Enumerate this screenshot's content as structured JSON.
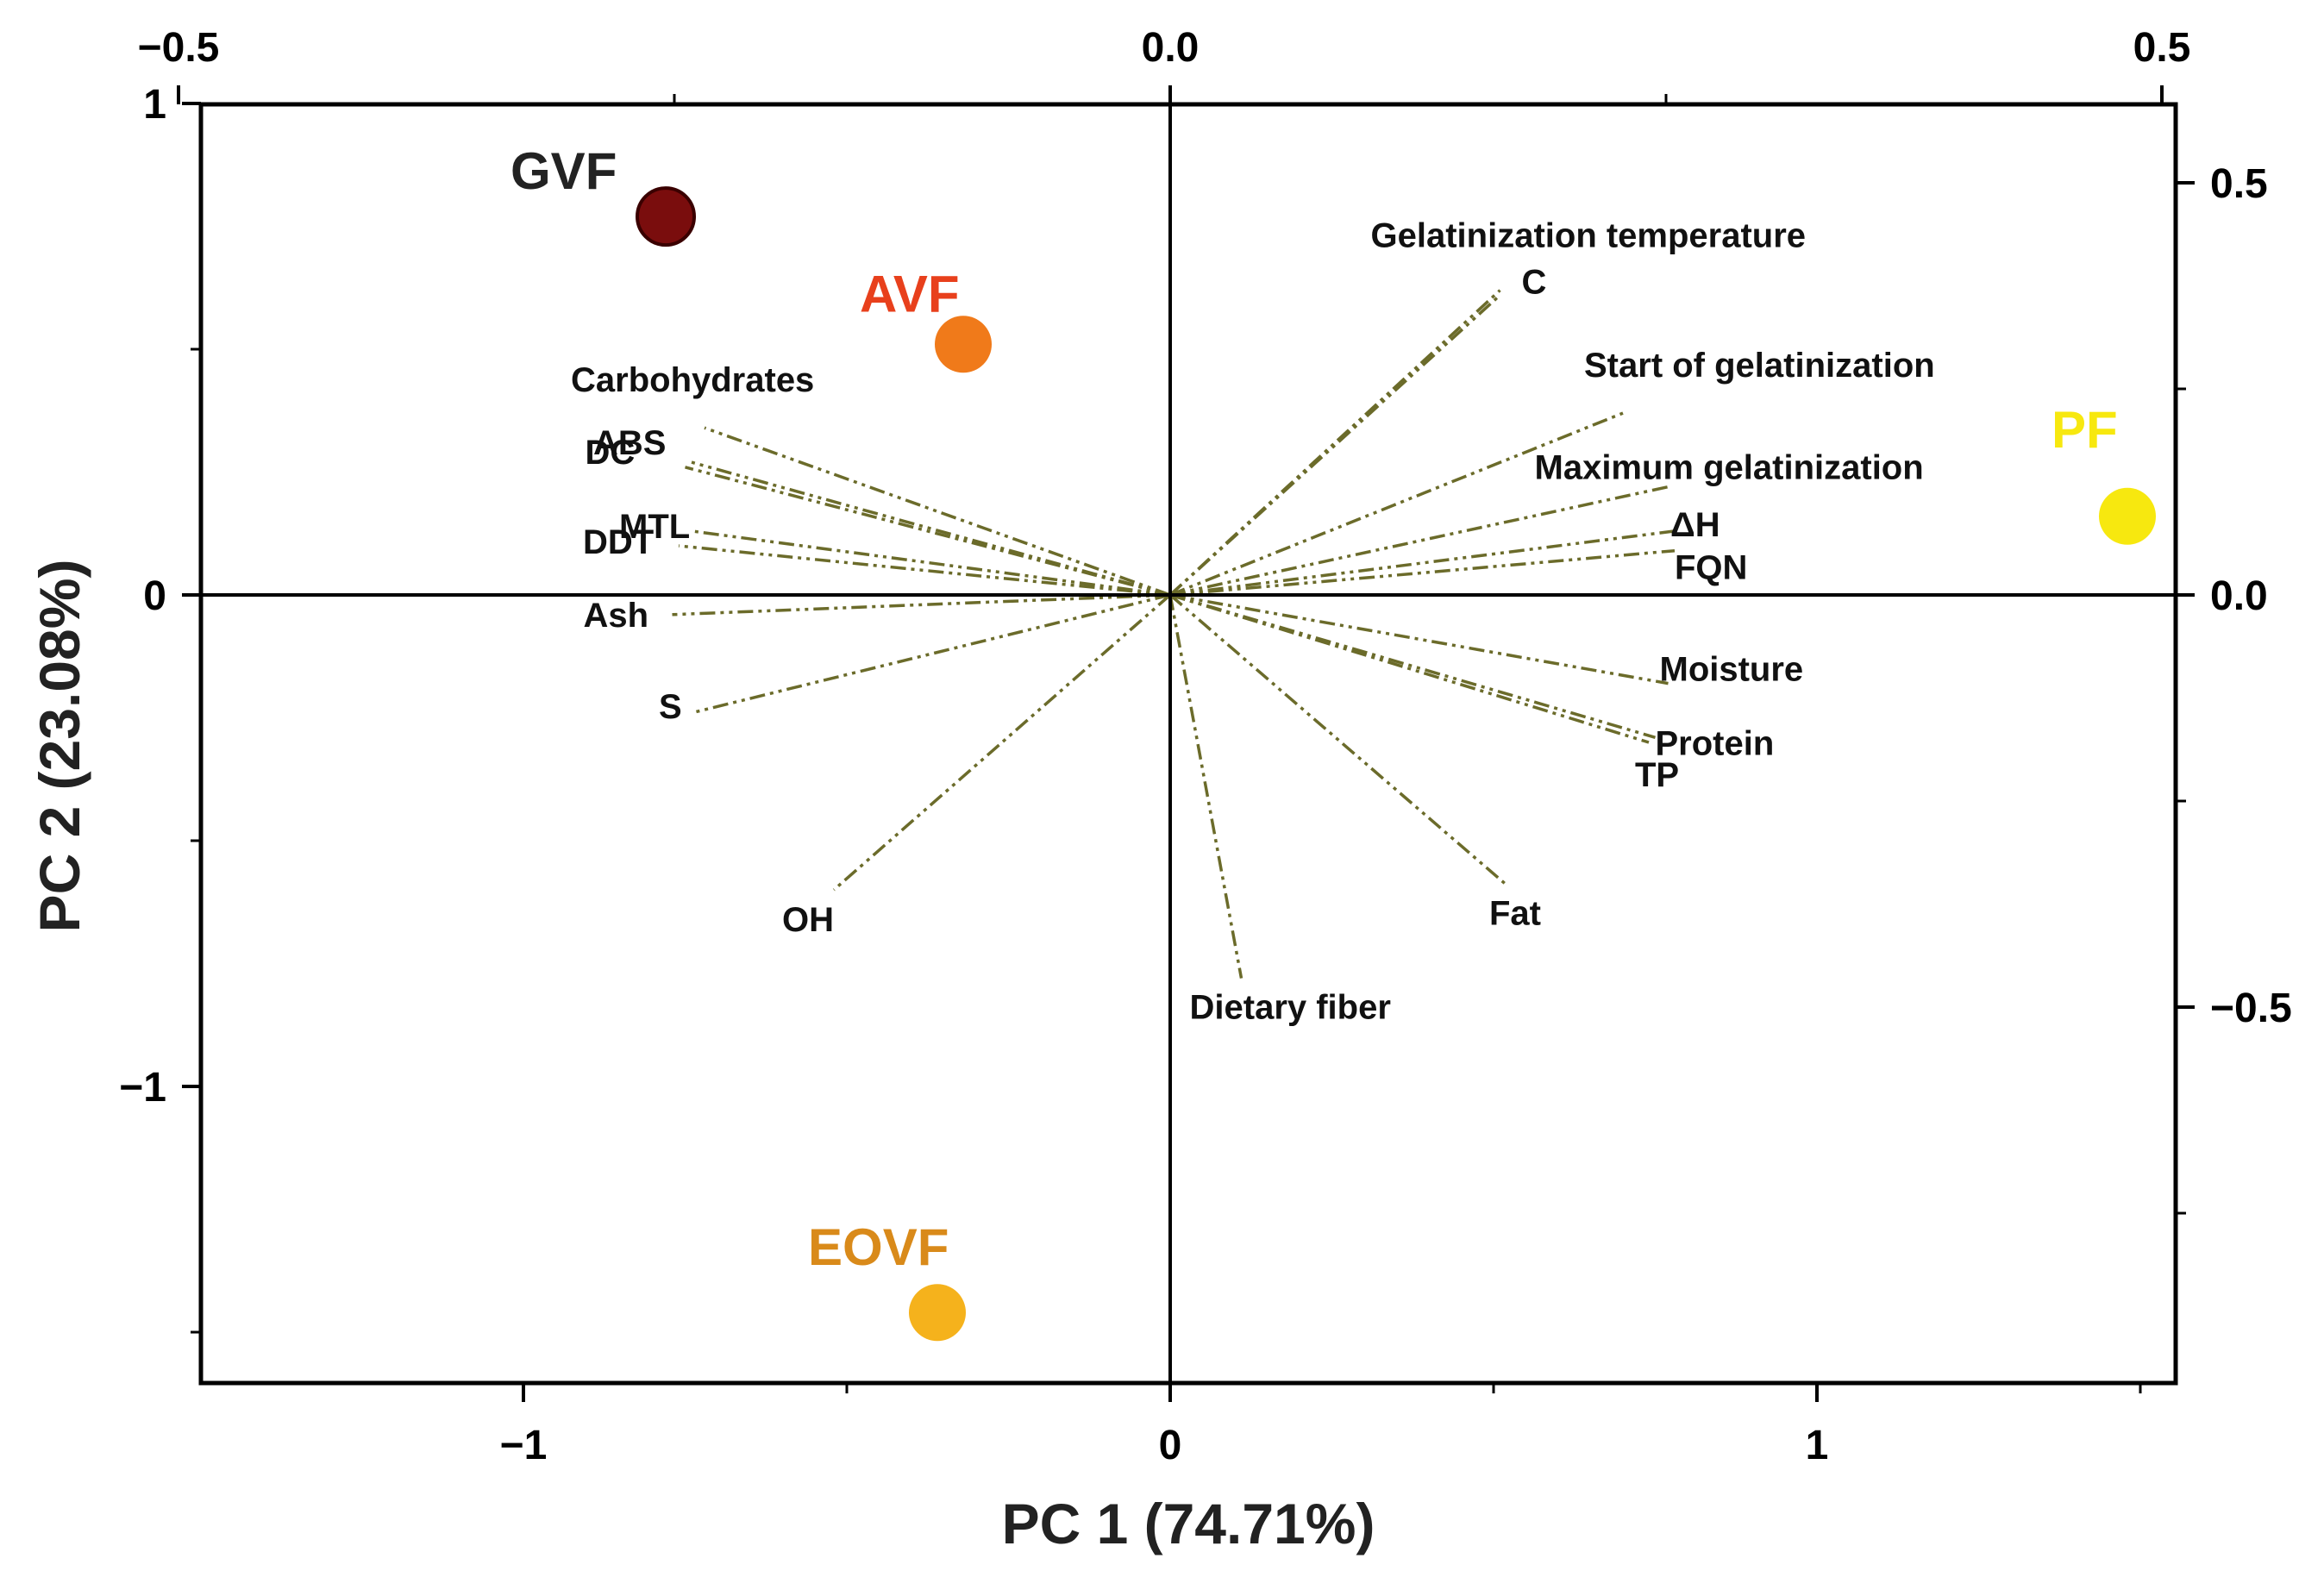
{
  "chart_data": {
    "type": "scatter",
    "subtype": "pca-biplot",
    "xlabel": "PC 1 (74.71%)",
    "ylabel": "PC 2 (23.08%)",
    "xlim": [
      -1.5,
      1.56
    ],
    "ylim": [
      -1.6,
      1.0
    ],
    "x_ticks": [
      -1,
      0,
      1
    ],
    "x_tick_labels": [
      "−1",
      "0",
      "1"
    ],
    "y_ticks": [
      1,
      0,
      -1
    ],
    "y_tick_labels": [
      "1",
      "0",
      "−1"
    ],
    "secondary_xlim": [
      -0.5,
      0.5
    ],
    "secondary_ylim": [
      -0.96,
      0.6
    ],
    "secondary_x_ticks": [
      -0.5,
      0.0,
      0.5
    ],
    "secondary_x_tick_labels": [
      "−0.5",
      "0.0",
      "0.5"
    ],
    "secondary_y_ticks": [
      0.5,
      0.0,
      -0.5
    ],
    "secondary_y_tick_labels": [
      "0.5",
      "0.0",
      "−0.5"
    ],
    "samples": [
      {
        "name": "GVF",
        "x": -0.78,
        "y": 0.77,
        "color": "#7a0d0d"
      },
      {
        "name": "AVF",
        "x": -0.32,
        "y": 0.51,
        "color": "#f07a1a",
        "label_color": "#e8401c"
      },
      {
        "name": "PF",
        "x": 1.48,
        "y": 0.16,
        "color": "#f7e80f"
      },
      {
        "name": "EOVF",
        "x": -0.36,
        "y": -1.46,
        "color": "#f5b21c",
        "label_color": "#d98a1a"
      }
    ],
    "loadings": [
      {
        "name": "Gelatinization temperature",
        "x": 0.51,
        "y": 0.62
      },
      {
        "name": "C",
        "x": 0.51,
        "y": 0.61
      },
      {
        "name": "Start of gelatinization",
        "x": 0.7,
        "y": 0.37
      },
      {
        "name": "Maximum gelatinization",
        "x": 0.77,
        "y": 0.22
      },
      {
        "name": "ΔH",
        "x": 0.78,
        "y": 0.13
      },
      {
        "name": "FQN",
        "x": 0.78,
        "y": 0.09
      },
      {
        "name": "Moisture",
        "x": 0.77,
        "y": -0.18
      },
      {
        "name": "Protein",
        "x": 0.75,
        "y": -0.29
      },
      {
        "name": "TP",
        "x": 0.74,
        "y": -0.3
      },
      {
        "name": "Fat",
        "x": 0.52,
        "y": -0.59
      },
      {
        "name": "Dietary fiber",
        "x": 0.11,
        "y": -0.78
      },
      {
        "name": "OH",
        "x": -0.52,
        "y": -0.6
      },
      {
        "name": "S",
        "x": -0.74,
        "y": -0.24
      },
      {
        "name": "Ash",
        "x": -0.77,
        "y": -0.04
      },
      {
        "name": "DDT",
        "x": -0.76,
        "y": 0.1
      },
      {
        "name": "MTL",
        "x": -0.74,
        "y": 0.13
      },
      {
        "name": "DC",
        "x": -0.75,
        "y": 0.26
      },
      {
        "name": "ABS",
        "x": -0.74,
        "y": 0.27
      },
      {
        "name": "Carbohydrates",
        "x": -0.72,
        "y": 0.34
      }
    ],
    "vector_color": "#6b6b2a"
  }
}
